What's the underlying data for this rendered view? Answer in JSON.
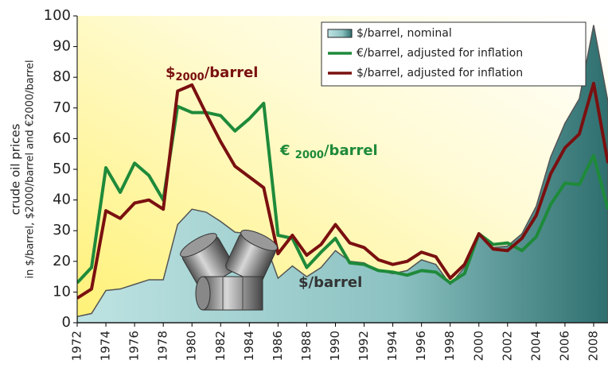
{
  "chart_data": {
    "type": "line",
    "y_label": "crude oil prices",
    "y_label_sub": "in $/barrel, $2000/barrel and €2000/barrel",
    "x": [
      1972,
      1973,
      1974,
      1975,
      1976,
      1977,
      1978,
      1979,
      1980,
      1981,
      1982,
      1983,
      1984,
      1985,
      1986,
      1987,
      1988,
      1989,
      1990,
      1991,
      1992,
      1993,
      1994,
      1995,
      1996,
      1997,
      1998,
      1999,
      2000,
      2001,
      2002,
      2003,
      2004,
      2005,
      2006,
      2007,
      2008,
      2009
    ],
    "series": [
      {
        "name": "$/barrel, nominal",
        "style": "area",
        "color": "#4f9797",
        "values": [
          2,
          3,
          10.5,
          11,
          12.5,
          14,
          14,
          32,
          37,
          36,
          33,
          29.5,
          29,
          27.5,
          14.5,
          18.5,
          15,
          18,
          23.5,
          20,
          19.5,
          17,
          16,
          17,
          20.5,
          19,
          12.5,
          18,
          28.5,
          24.5,
          25,
          29,
          38,
          54,
          65,
          73,
          97,
          72
        ]
      },
      {
        "name": "€/barrel, adjusted for inflation",
        "style": "line",
        "color": "#1e8a3a",
        "values": [
          13,
          18,
          50.5,
          42.5,
          52,
          48,
          40,
          70.5,
          68.5,
          68.5,
          67.5,
          62.5,
          66.5,
          71.5,
          28.5,
          27.5,
          18,
          23,
          27.5,
          19.5,
          19,
          17,
          16.5,
          15.5,
          17,
          16.5,
          13,
          16,
          29,
          25.5,
          26,
          23.5,
          28,
          38.5,
          45.5,
          45,
          54.5,
          37
        ]
      },
      {
        "name": "$/barrel, adjusted for inflation",
        "style": "line",
        "color": "#7a1010",
        "values": [
          8,
          11,
          36.5,
          34,
          39,
          40,
          37,
          75.5,
          77.5,
          68,
          59,
          51,
          47.5,
          44,
          22.5,
          28.5,
          22,
          25.5,
          32,
          26,
          24.5,
          20.5,
          19,
          20,
          23,
          21.5,
          14.5,
          19,
          29,
          24,
          23.5,
          27.5,
          35,
          48.5,
          57,
          61.5,
          78,
          52
        ]
      }
    ],
    "annotations": [
      {
        "prefix": "$",
        "sub": "2000",
        "suffix": "/barrel",
        "color": "#7a1010"
      },
      {
        "prefix": "€ ",
        "sub": "2000",
        "suffix": "/barrel",
        "color": "#1e8a3a"
      },
      {
        "prefix": "$/barrel",
        "color": "#333333"
      }
    ],
    "xlim": [
      1972,
      2009
    ],
    "ylim": [
      0,
      100
    ],
    "xticks": [
      1972,
      1974,
      1976,
      1978,
      1980,
      1982,
      1984,
      1986,
      1988,
      1990,
      1992,
      1994,
      1996,
      1998,
      2000,
      2002,
      2004,
      2006,
      2008
    ],
    "yticks": [
      0,
      10,
      20,
      30,
      40,
      50,
      60,
      70,
      80,
      90,
      100
    ],
    "legend": "top-right"
  }
}
